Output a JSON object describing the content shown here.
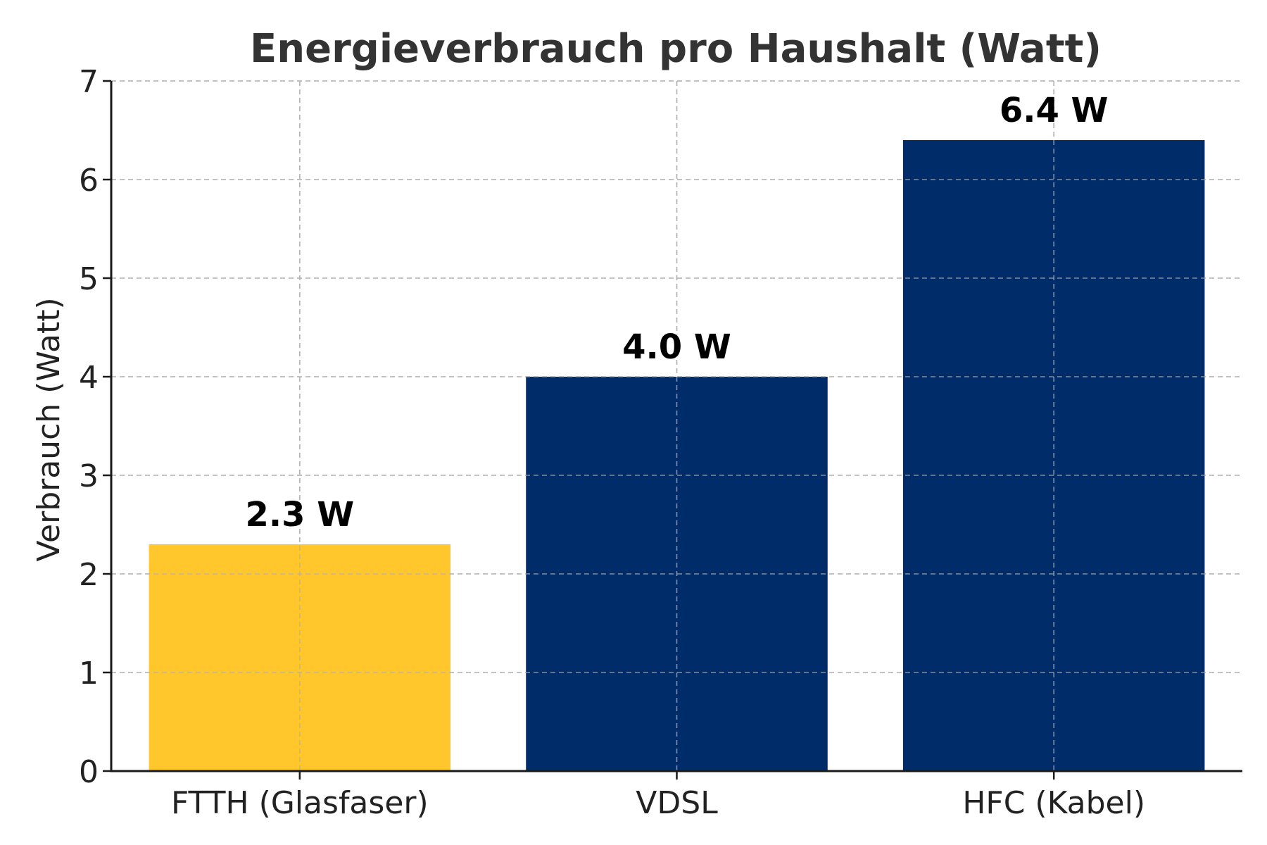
{
  "chart_data": {
    "type": "bar",
    "title": "Energieverbrauch pro Haushalt (Watt)",
    "xlabel": "",
    "ylabel": "Verbrauch (Watt)",
    "categories": [
      "FTTH (Glasfaser)",
      "VDSL",
      "HFC (Kabel)"
    ],
    "values": [
      2.3,
      4.0,
      6.4
    ],
    "value_labels": [
      "2.3 W",
      "4.0 W",
      "6.4 W"
    ],
    "bar_colors": [
      "#FFC72C",
      "#002D6A",
      "#002D6A"
    ],
    "ylim": [
      0,
      7
    ],
    "yticks": [
      0,
      1,
      2,
      3,
      4,
      5,
      6,
      7
    ],
    "grid": true
  }
}
